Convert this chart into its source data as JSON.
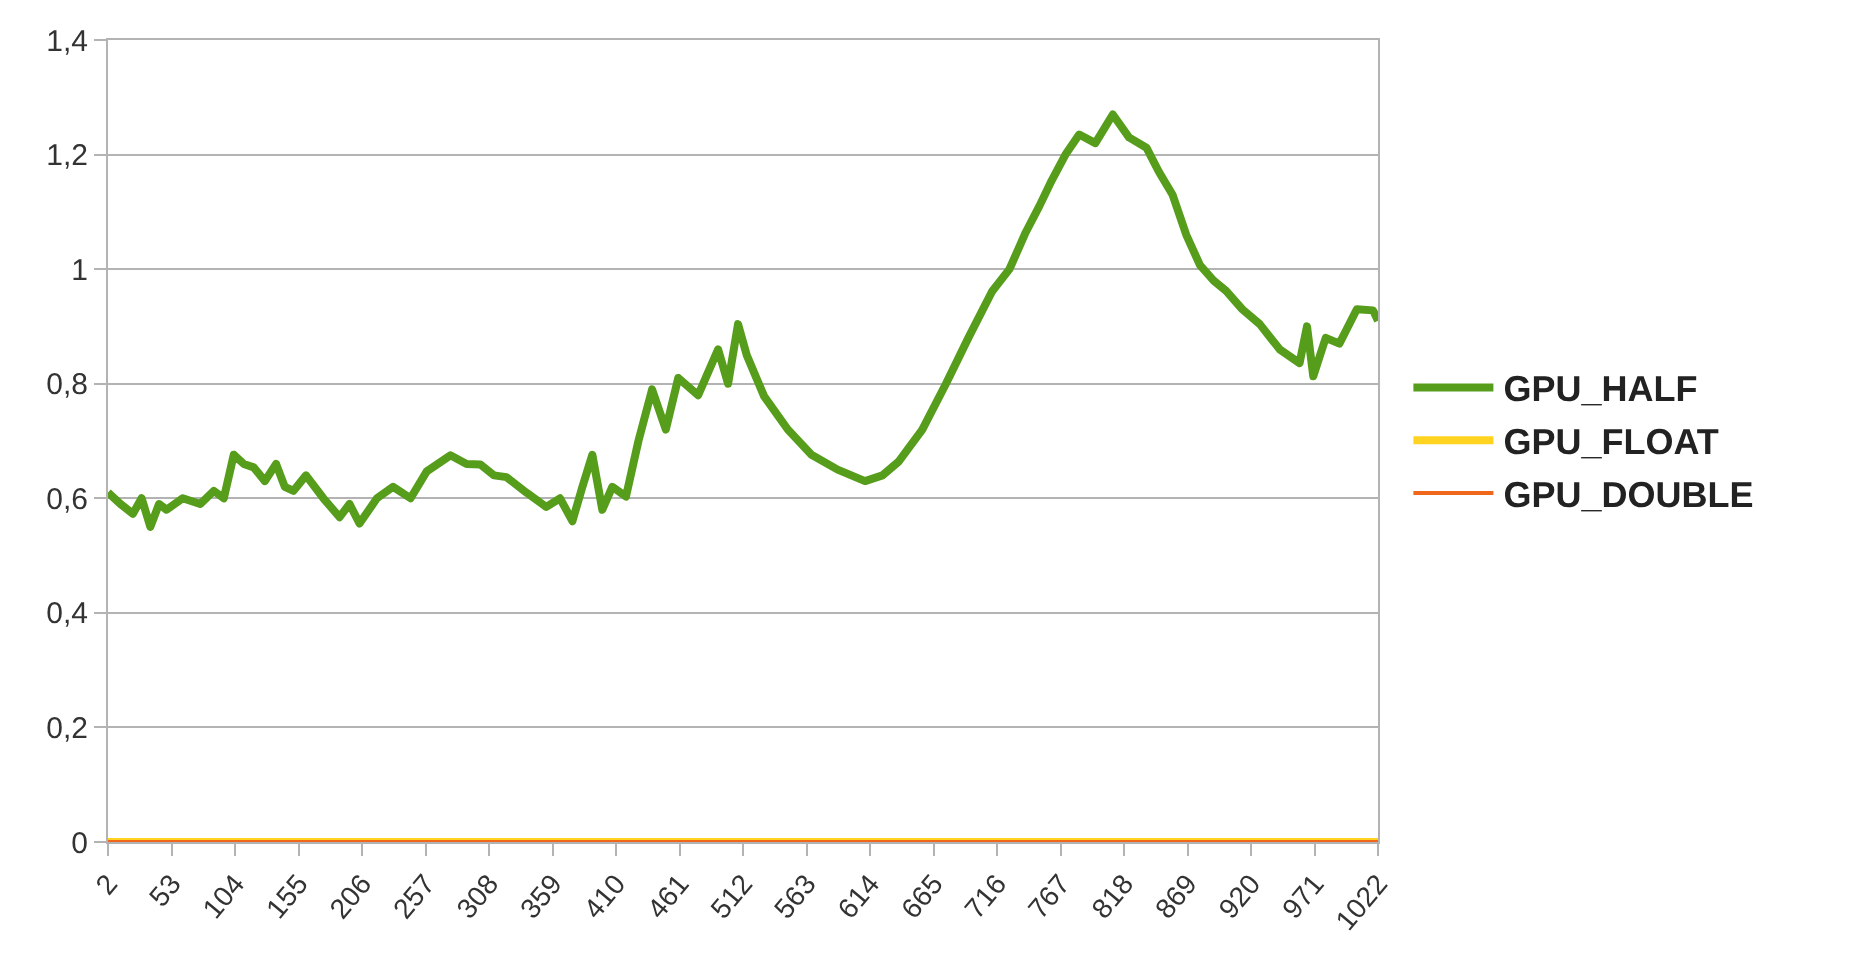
{
  "chart_data": {
    "type": "line",
    "xlim": [
      2,
      1022
    ],
    "xticks": [
      2,
      53,
      104,
      155,
      206,
      257,
      308,
      359,
      410,
      461,
      512,
      563,
      614,
      665,
      716,
      767,
      818,
      869,
      920,
      971,
      1022
    ],
    "ylim": [
      0,
      1.4
    ],
    "yticks": [
      0,
      {
        "value": 0.2,
        "label": "0,2"
      },
      {
        "value": 0.4,
        "label": "0,4"
      },
      {
        "value": 0.6,
        "label": "0,6"
      },
      {
        "value": 0.8,
        "label": "0,8"
      },
      1,
      {
        "value": 1.2,
        "label": "1,2"
      },
      {
        "value": 1.4,
        "label": "1,4"
      }
    ],
    "grid": "y",
    "legend": "right",
    "line_style": "solid",
    "marker": "none",
    "series": [
      {
        "name": "GPU_HALF",
        "color": "#579d1c",
        "x": [
          2,
          12,
          22,
          29,
          36,
          43,
          49,
          62,
          76,
          87,
          95,
          103,
          111,
          119,
          128,
          137,
          144,
          151,
          161,
          175,
          188,
          196,
          204,
          218,
          231,
          245,
          258,
          277,
          290,
          301,
          312,
          322,
          338,
          354,
          365,
          375,
          383,
          391,
          399,
          407,
          418,
          428,
          439,
          450,
          460,
          476,
          492,
          500,
          508,
          515,
          529,
          548,
          567,
          588,
          610,
          624,
          637,
          656,
          675,
          693,
          712,
          726,
          739,
          750,
          760,
          771,
          782,
          795,
          809,
          822,
          836,
          846,
          857,
          868,
          879,
          890,
          900,
          913,
          927,
          943,
          959,
          965,
          970,
          980,
          991,
          1005,
          1018,
          1022
        ],
        "values": [
          0.61,
          0.59,
          0.573,
          0.6,
          0.55,
          0.59,
          0.58,
          0.6,
          0.59,
          0.613,
          0.6,
          0.676,
          0.66,
          0.654,
          0.63,
          0.66,
          0.62,
          0.613,
          0.64,
          0.6,
          0.567,
          0.59,
          0.556,
          0.6,
          0.62,
          0.6,
          0.647,
          0.675,
          0.66,
          0.659,
          0.64,
          0.637,
          0.61,
          0.585,
          0.6,
          0.56,
          0.62,
          0.676,
          0.58,
          0.62,
          0.603,
          0.7,
          0.79,
          0.72,
          0.81,
          0.78,
          0.86,
          0.8,
          0.904,
          0.85,
          0.778,
          0.72,
          0.676,
          0.65,
          0.63,
          0.64,
          0.664,
          0.72,
          0.8,
          0.88,
          0.961,
          1.0,
          1.064,
          1.11,
          1.155,
          1.2,
          1.235,
          1.22,
          1.27,
          1.23,
          1.212,
          1.17,
          1.13,
          1.06,
          1.007,
          0.98,
          0.962,
          0.93,
          0.904,
          0.86,
          0.836,
          0.9,
          0.813,
          0.88,
          0.87,
          0.93,
          0.928,
          0.91
        ]
      },
      {
        "name": "GPU_FLOAT",
        "color": "#ffd320",
        "x": [
          2,
          1022
        ],
        "values": [
          0,
          0
        ]
      },
      {
        "name": "GPU_DOUBLE",
        "color": "#f0661a",
        "x": [
          2,
          1022
        ],
        "values": [
          0,
          0
        ]
      }
    ]
  }
}
